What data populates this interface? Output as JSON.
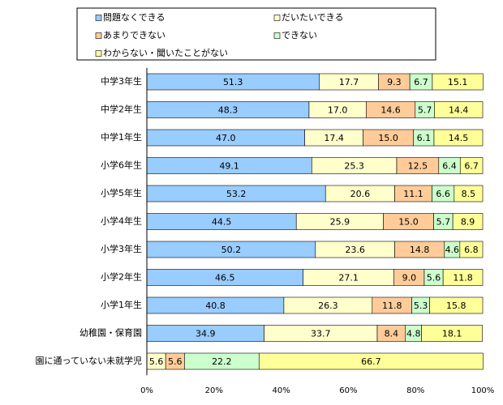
{
  "chart_data": {
    "type": "stacked-bar-horizontal",
    "categories": [
      "中学3年生",
      "中学2年生",
      "中学1年生",
      "小学6年生",
      "小学5年生",
      "小学4年生",
      "小学3年生",
      "小学2年生",
      "小学1年生",
      "幼稚園・保育園",
      "園に通っていない未就学児"
    ],
    "series": [
      {
        "name": "問題なくできる",
        "color": "#99ccff",
        "values": [
          51.3,
          48.3,
          47.0,
          49.1,
          53.2,
          44.5,
          50.2,
          46.5,
          40.8,
          34.9,
          null
        ],
        "value_labels": [
          "51.3",
          "48.3",
          "47.0",
          "49.1",
          "53.2",
          "44.5",
          "50.2",
          "46.5",
          "40.8",
          "34.9",
          null
        ]
      },
      {
        "name": "だいたいできる",
        "color": "#ffffcc",
        "values": [
          17.7,
          17.0,
          17.4,
          25.3,
          20.6,
          25.9,
          23.6,
          27.1,
          26.3,
          33.7,
          5.6
        ],
        "value_labels": [
          "17.7",
          "17.0",
          "17.4",
          "25.3",
          "20.6",
          "25.9",
          "23.6",
          "27.1",
          "26.3",
          "33.7",
          "5.6"
        ]
      },
      {
        "name": "あまりできない",
        "color": "#ffcc99",
        "values": [
          9.3,
          14.6,
          15.0,
          12.5,
          11.1,
          15.0,
          14.8,
          9.0,
          11.8,
          8.4,
          5.6
        ],
        "value_labels": [
          "9.3",
          "14.6",
          "15.0",
          "12.5",
          "11.1",
          "15.0",
          "14.8",
          "9.0",
          "11.8",
          "8.4",
          "5.6"
        ]
      },
      {
        "name": "できない",
        "color": "#ccffcc",
        "values": [
          6.7,
          5.7,
          6.1,
          6.4,
          6.6,
          5.7,
          4.6,
          5.6,
          5.3,
          4.8,
          22.2
        ],
        "value_labels": [
          "6.7",
          "5.7",
          "6.1",
          "6.4",
          "6.6",
          "5.7",
          "4.6",
          "5.6",
          "5.3",
          "4.8",
          "22.2"
        ]
      },
      {
        "name": "わからない・聞いたことがない",
        "color": "#ffff99",
        "values": [
          15.1,
          14.4,
          14.5,
          6.7,
          8.5,
          8.9,
          6.8,
          11.8,
          15.8,
          18.1,
          66.7
        ],
        "value_labels": [
          "15.1",
          "14.4",
          "14.5",
          "6.7",
          "8.5",
          "8.9",
          "6.8",
          "11.8",
          "15.8",
          "18.1",
          "66.7"
        ]
      }
    ],
    "xlim": [
      0,
      100
    ],
    "xticks": [
      {
        "value": 0,
        "label": "0%"
      },
      {
        "value": 20,
        "label": "20%"
      },
      {
        "value": 40,
        "label": "40%"
      },
      {
        "value": 60,
        "label": "60%"
      },
      {
        "value": 80,
        "label": "80%"
      },
      {
        "value": 100,
        "label": "100%"
      }
    ]
  }
}
